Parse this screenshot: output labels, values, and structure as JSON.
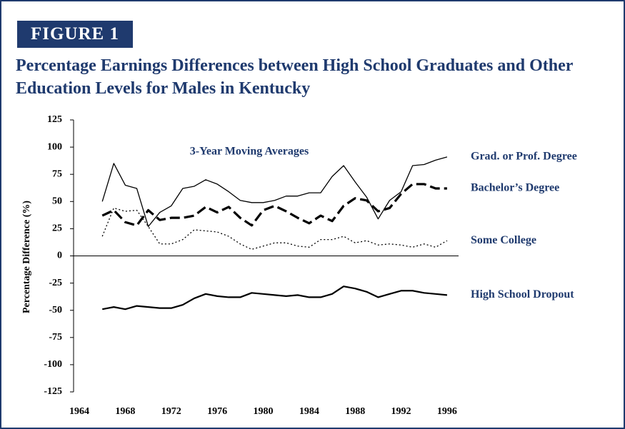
{
  "figure_label": "FIGURE 1",
  "chart_data": {
    "type": "line",
    "title": "Percentage Earnings Differences between High School Graduates and Other Education Levels for Males in Kentucky",
    "annotation": "3-Year Moving Averages",
    "y_label": "Percentage Difference (%)",
    "x": [
      1966,
      1967,
      1968,
      1969,
      1970,
      1971,
      1972,
      1973,
      1974,
      1975,
      1976,
      1977,
      1978,
      1979,
      1980,
      1981,
      1982,
      1983,
      1984,
      1985,
      1986,
      1987,
      1988,
      1989,
      1990,
      1991,
      1992,
      1993,
      1994,
      1995,
      1996
    ],
    "xlim": [
      1963.5,
      1997
    ],
    "xticks": [
      1964,
      1968,
      1972,
      1976,
      1980,
      1984,
      1988,
      1992,
      1996
    ],
    "ylim": [
      -125,
      125
    ],
    "yticks": [
      125,
      100,
      75,
      50,
      25,
      0,
      -25,
      -50,
      -75,
      -100,
      -125
    ],
    "series": [
      {
        "name": "Grad. or Prof. Degree",
        "color": "#000000",
        "style": "thin",
        "values": [
          50,
          85,
          65,
          62,
          27,
          40,
          46,
          62,
          64,
          70,
          66,
          59,
          51,
          49,
          49,
          51,
          55,
          55,
          58,
          58,
          73,
          83,
          68,
          54,
          34,
          51,
          59,
          83,
          84,
          88,
          91
        ]
      },
      {
        "name": "Bachelor’s Degree",
        "color": "#000000",
        "style": "dashed",
        "values": [
          37,
          42,
          31,
          28,
          42,
          33,
          35,
          35,
          37,
          45,
          40,
          45,
          35,
          28,
          42,
          46,
          41,
          35,
          30,
          37,
          32,
          46,
          53,
          51,
          41,
          44,
          57,
          66,
          66,
          62,
          62
        ]
      },
      {
        "name": "Some College",
        "color": "#000000",
        "style": "dotted",
        "values": [
          18,
          44,
          41,
          42,
          27,
          11,
          11,
          15,
          24,
          23,
          22,
          18,
          11,
          6,
          9,
          12,
          12,
          9,
          8,
          15,
          15,
          18,
          12,
          14,
          10,
          11,
          10,
          8,
          11,
          8,
          14
        ]
      },
      {
        "name": "High School Dropout",
        "color": "#000000",
        "style": "solid",
        "values": [
          -49,
          -47,
          -49,
          -46,
          -47,
          -48,
          -48,
          -45,
          -39,
          -35,
          -37,
          -38,
          -38,
          -34,
          -35,
          -36,
          -37,
          -36,
          -38,
          -38,
          -35,
          -28,
          -30,
          -33,
          -38,
          -35,
          -32,
          -32,
          -34,
          -35,
          -36
        ]
      }
    ]
  }
}
